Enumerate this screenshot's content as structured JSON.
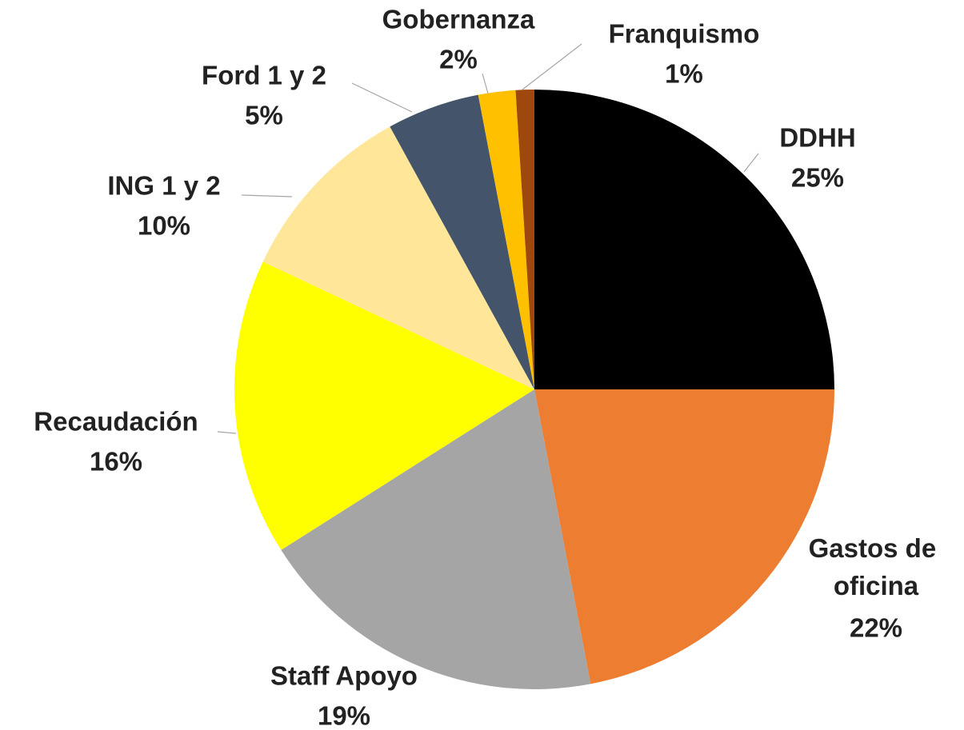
{
  "chart_data": {
    "type": "pie",
    "categories": [
      "DDHH",
      "Gastos de oficina",
      "Staff Apoyo",
      "Recaudación",
      "ING 1 y 2",
      "Ford  1 y 2",
      "Gobernanza",
      "Franquismo"
    ],
    "values": [
      25,
      22,
      19,
      16,
      10,
      5,
      2,
      1
    ],
    "value_labels": [
      "25%",
      "22%",
      "19%",
      "16%",
      "10%",
      "5%",
      "2%",
      "1%"
    ],
    "colors": [
      "#000000",
      "#ed7d31",
      "#a5a5a5",
      "#ffff00",
      "#ffe699",
      "#44546a",
      "#ffc000",
      "#9e480e"
    ]
  }
}
